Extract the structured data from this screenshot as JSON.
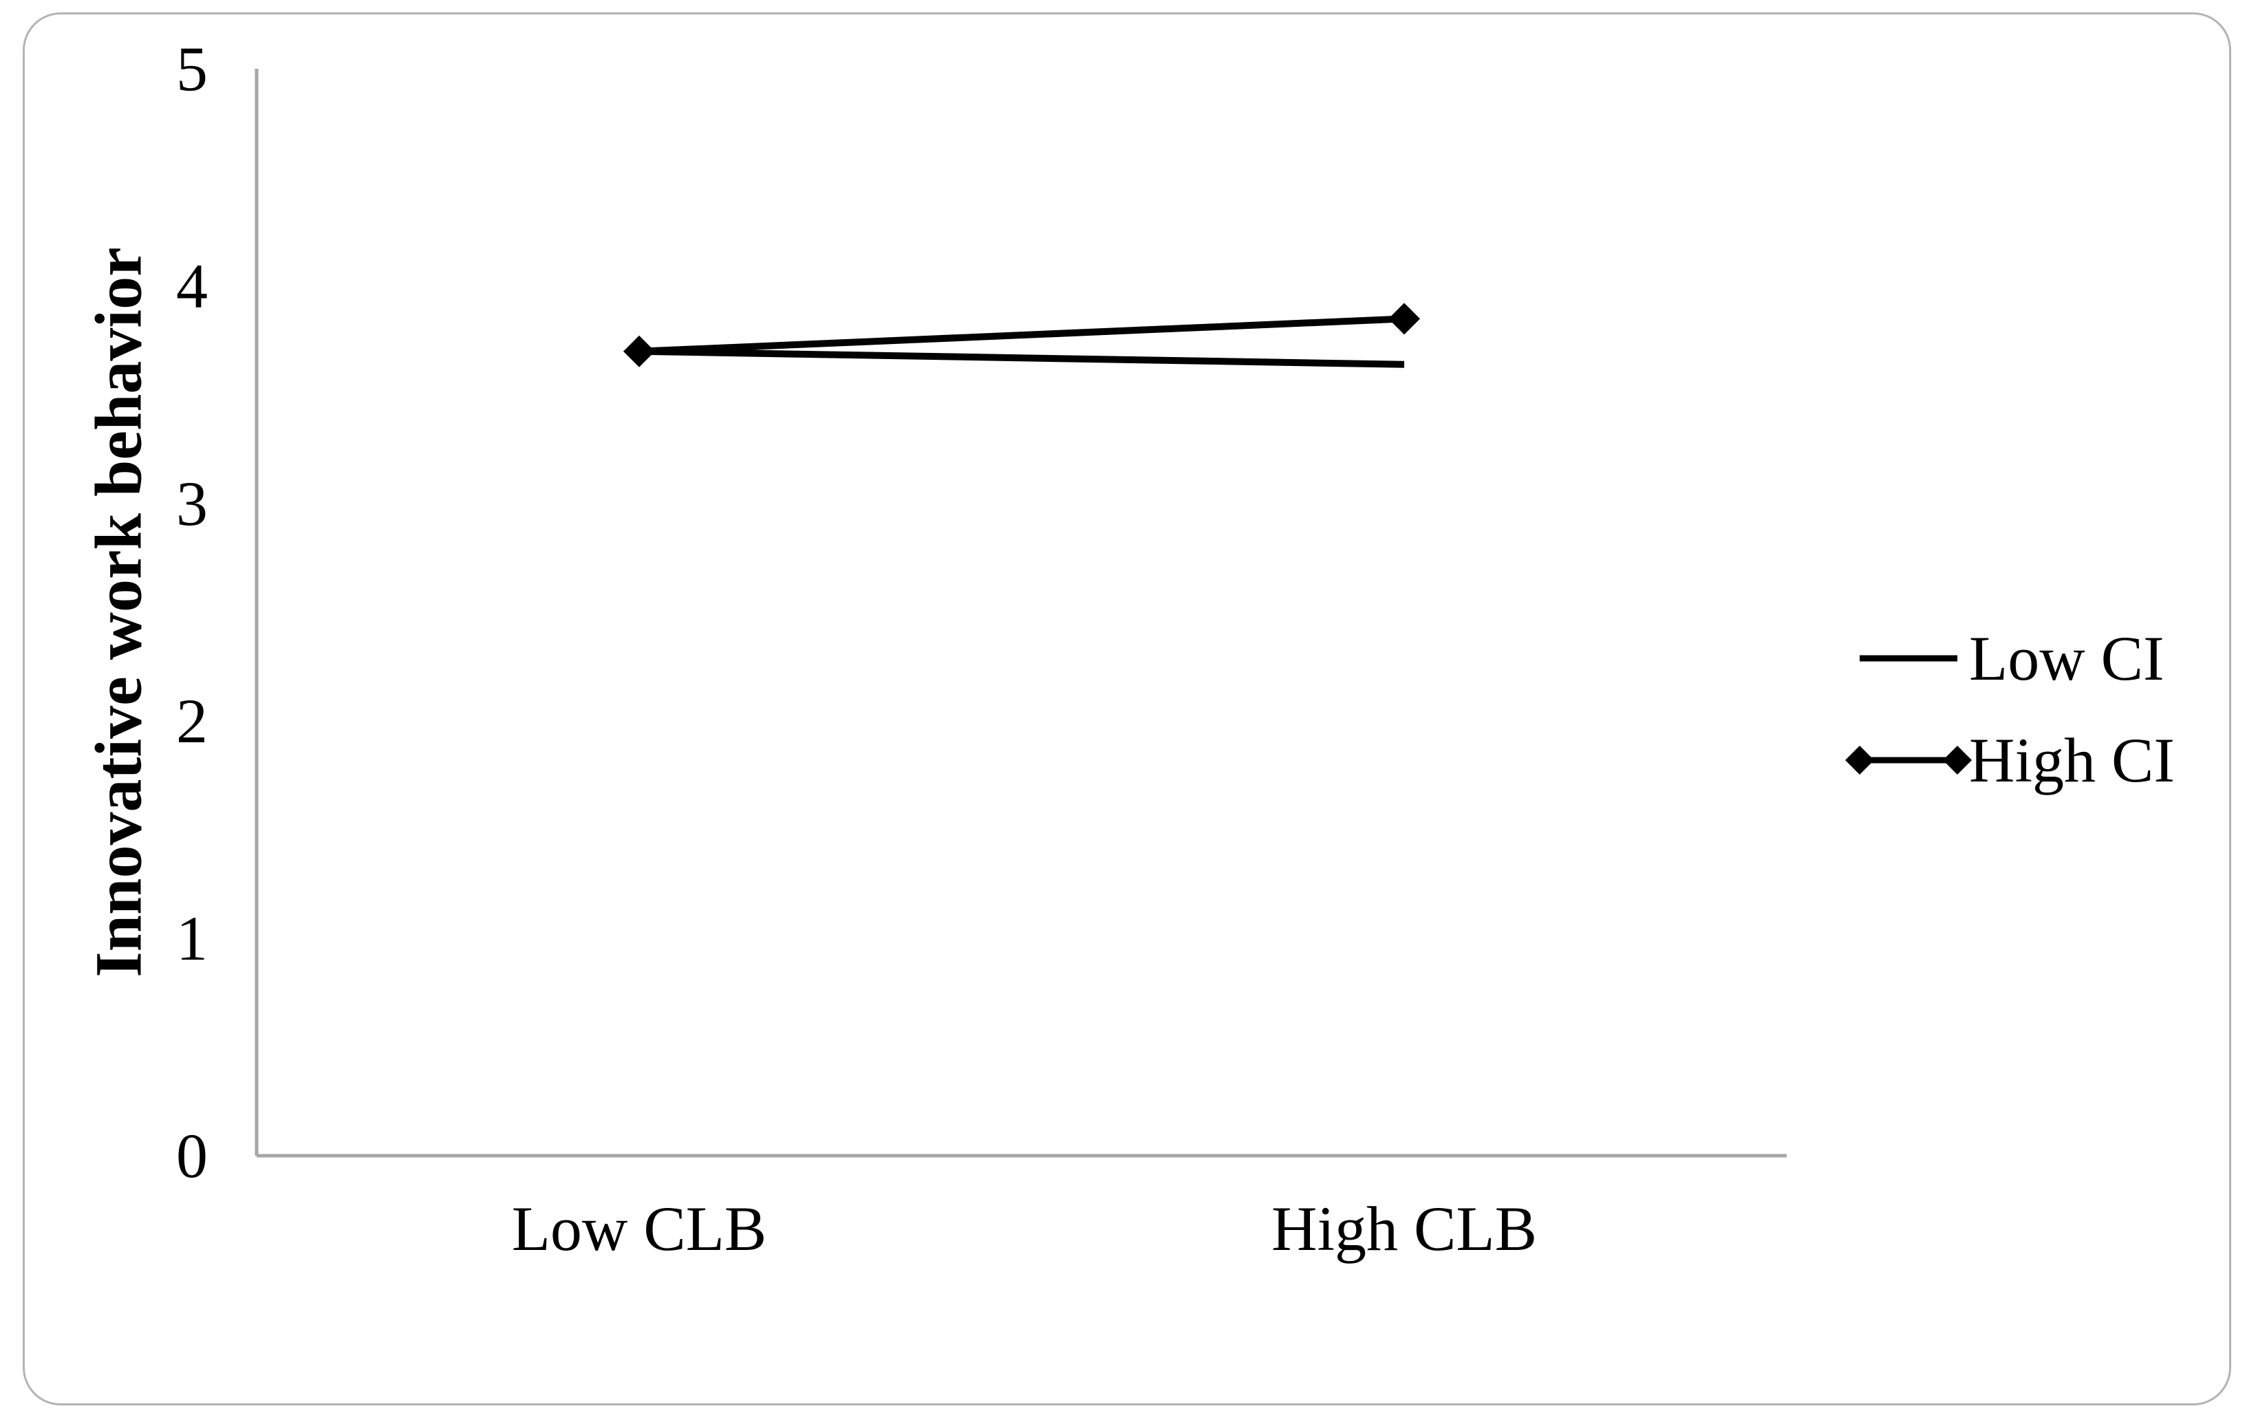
{
  "figure": {
    "background": "#ffffff",
    "frame_border_color": "#b3b3b3"
  },
  "chart_data": {
    "type": "line",
    "categories": [
      "Low CLB",
      "High CLB"
    ],
    "series": [
      {
        "name": "Low CI",
        "values": [
          3.7,
          3.64
        ],
        "marker": "none",
        "color": "#000000"
      },
      {
        "name": "High CI",
        "values": [
          3.7,
          3.85
        ],
        "marker": "diamond",
        "color": "#000000"
      }
    ],
    "title": "",
    "xlabel": "",
    "ylabel": "Innovative work behavior",
    "ylim": [
      0,
      5
    ],
    "y_ticks": [
      "5",
      "4",
      "3",
      "2",
      "1",
      "0"
    ],
    "y_tick_values": [
      5,
      4,
      3,
      2,
      1,
      0
    ],
    "grid": false,
    "legend_position": "right",
    "axis_color": "#a6a6a6",
    "text_color": "#000000"
  }
}
